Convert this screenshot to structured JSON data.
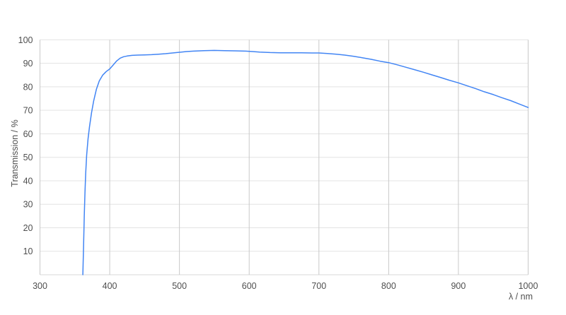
{
  "chart_data": {
    "type": "line",
    "title": "",
    "xlabel": "λ / nm",
    "ylabel": "Transmission / %",
    "xlim": [
      300,
      1000
    ],
    "ylim": [
      0,
      100
    ],
    "x_ticks": [
      300,
      400,
      500,
      600,
      700,
      800,
      900,
      1000
    ],
    "y_ticks": [
      10,
      20,
      30,
      40,
      50,
      60,
      70,
      80,
      90,
      100
    ],
    "grid": true,
    "legend": "none",
    "line_color": "#4285f4",
    "h_grid_color": "#e3e3e3",
    "v_grid_color": "#c9c9c9",
    "axis_color": "#d9d9d9",
    "label_color": "#4f4f4f",
    "background_color": "#ffffff",
    "series": [
      {
        "name": "transmission",
        "points": [
          [
            361.5,
            0
          ],
          [
            362.5,
            12
          ],
          [
            363.5,
            25
          ],
          [
            364.5,
            35
          ],
          [
            365.5,
            43
          ],
          [
            367,
            51
          ],
          [
            369,
            58
          ],
          [
            371,
            63
          ],
          [
            374,
            69
          ],
          [
            377,
            74
          ],
          [
            381,
            79
          ],
          [
            385,
            82.5
          ],
          [
            390,
            85
          ],
          [
            395,
            86.5
          ],
          [
            400,
            87.6
          ],
          [
            405,
            89.3
          ],
          [
            410,
            91
          ],
          [
            415,
            92.2
          ],
          [
            420,
            92.8
          ],
          [
            425,
            93.1
          ],
          [
            432,
            93.4
          ],
          [
            440,
            93.5
          ],
          [
            450,
            93.6
          ],
          [
            460,
            93.7
          ],
          [
            470,
            93.9
          ],
          [
            480,
            94.1
          ],
          [
            490,
            94.4
          ],
          [
            500,
            94.7
          ],
          [
            510,
            95.0
          ],
          [
            520,
            95.2
          ],
          [
            535,
            95.4
          ],
          [
            550,
            95.5
          ],
          [
            565,
            95.4
          ],
          [
            580,
            95.3
          ],
          [
            595,
            95.2
          ],
          [
            605,
            95.0
          ],
          [
            615,
            94.8
          ],
          [
            630,
            94.6
          ],
          [
            645,
            94.5
          ],
          [
            660,
            94.5
          ],
          [
            675,
            94.5
          ],
          [
            690,
            94.4
          ],
          [
            700,
            94.4
          ],
          [
            712,
            94.2
          ],
          [
            725,
            93.9
          ],
          [
            737,
            93.5
          ],
          [
            750,
            93.0
          ],
          [
            762,
            92.4
          ],
          [
            775,
            91.7
          ],
          [
            788,
            90.9
          ],
          [
            800,
            90.3
          ],
          [
            812,
            89.4
          ],
          [
            825,
            88.3
          ],
          [
            837,
            87.3
          ],
          [
            850,
            86.2
          ],
          [
            862,
            85.1
          ],
          [
            875,
            83.9
          ],
          [
            887,
            82.8
          ],
          [
            900,
            81.7
          ],
          [
            912,
            80.5
          ],
          [
            925,
            79.2
          ],
          [
            937,
            77.9
          ],
          [
            950,
            76.7
          ],
          [
            962,
            75.4
          ],
          [
            975,
            74.1
          ],
          [
            987,
            72.7
          ],
          [
            1000,
            71.2
          ]
        ]
      }
    ]
  }
}
